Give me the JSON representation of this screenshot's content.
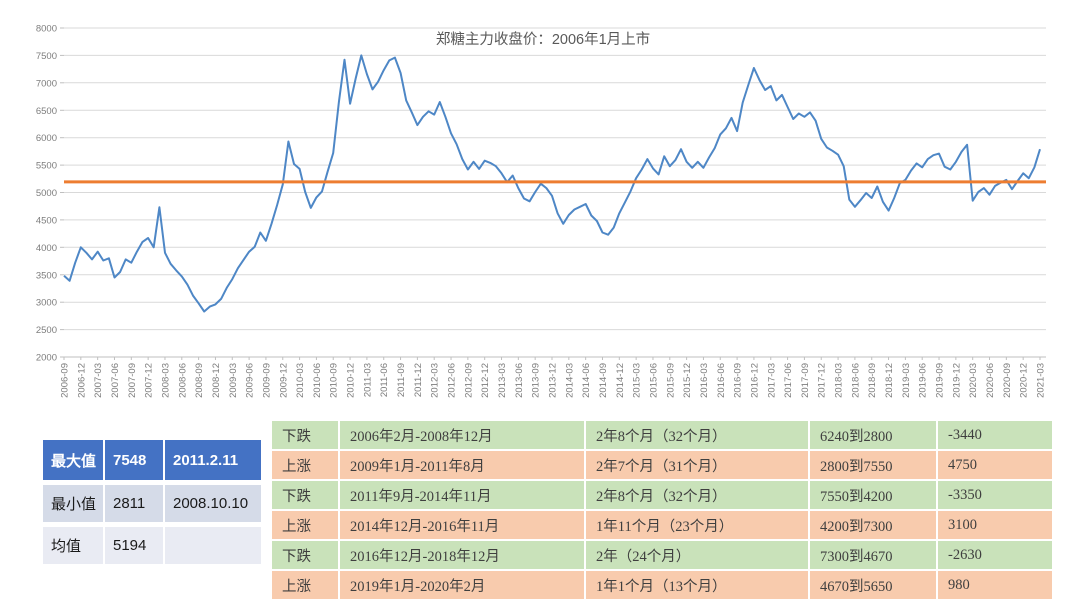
{
  "chart_data": {
    "type": "line",
    "title": "郑糖主力收盘价：2006年1月上市",
    "ylim": [
      2000,
      8000
    ],
    "ytick_step": 500,
    "grid": true,
    "legend": "none",
    "y_tick_labels": [
      "2000",
      "2500",
      "3000",
      "3500",
      "4000",
      "4500",
      "5000",
      "5500",
      "6000",
      "6500",
      "7000",
      "7500",
      "8000"
    ],
    "x_tick_labels": [
      "2006-09",
      "2006-12",
      "2007-03",
      "2007-06",
      "2007-09",
      "2007-12",
      "2008-03",
      "2008-06",
      "2008-09",
      "2008-12",
      "2009-03",
      "2009-06",
      "2009-09",
      "2009-12",
      "2010-03",
      "2010-06",
      "2010-09",
      "2010-12",
      "2011-03",
      "2011-06",
      "2011-09",
      "2011-12",
      "2012-03",
      "2012-06",
      "2012-09",
      "2012-12",
      "2013-03",
      "2013-06",
      "2013-09",
      "2013-12",
      "2014-03",
      "2014-06",
      "2014-09",
      "2014-12",
      "2015-03",
      "2015-06",
      "2015-09",
      "2015-12",
      "2016-03",
      "2016-06",
      "2016-09",
      "2016-12",
      "2017-03",
      "2017-06",
      "2017-09",
      "2017-12",
      "2018-03",
      "2018-06",
      "2018-09",
      "2018-12",
      "2019-03",
      "2019-06",
      "2019-09",
      "2019-12",
      "2020-03",
      "2020-06",
      "2020-09",
      "2020-12",
      "2021-03"
    ],
    "mean_line": {
      "label": "均值",
      "value": 5194
    },
    "series": [
      {
        "name": "郑糖主力收盘价",
        "start_month": "2006-09",
        "frequency": "monthly",
        "values": [
          3480,
          3390,
          3720,
          4000,
          3900,
          3780,
          3920,
          3760,
          3800,
          3450,
          3550,
          3780,
          3720,
          3920,
          4100,
          4170,
          4000,
          4730,
          3900,
          3700,
          3580,
          3470,
          3320,
          3120,
          2980,
          2830,
          2920,
          2960,
          3060,
          3260,
          3420,
          3620,
          3770,
          3920,
          4010,
          4270,
          4120,
          4430,
          4770,
          5150,
          5930,
          5520,
          5430,
          5010,
          4720,
          4910,
          5020,
          5380,
          5720,
          6650,
          7420,
          6620,
          7080,
          7500,
          7160,
          6880,
          7020,
          7230,
          7410,
          7460,
          7180,
          6680,
          6460,
          6230,
          6380,
          6480,
          6420,
          6650,
          6380,
          6080,
          5880,
          5610,
          5420,
          5560,
          5430,
          5580,
          5540,
          5480,
          5350,
          5190,
          5310,
          5080,
          4890,
          4840,
          5010,
          5160,
          5080,
          4940,
          4620,
          4430,
          4590,
          4690,
          4740,
          4790,
          4580,
          4480,
          4270,
          4230,
          4360,
          4620,
          4820,
          5020,
          5260,
          5420,
          5610,
          5440,
          5330,
          5660,
          5480,
          5590,
          5790,
          5560,
          5450,
          5560,
          5450,
          5640,
          5810,
          6060,
          6170,
          6360,
          6120,
          6640,
          6960,
          7270,
          7050,
          6870,
          6940,
          6680,
          6780,
          6560,
          6340,
          6440,
          6380,
          6460,
          6310,
          5980,
          5820,
          5760,
          5690,
          5480,
          4870,
          4740,
          4860,
          4990,
          4900,
          5110,
          4830,
          4670,
          4900,
          5170,
          5230,
          5400,
          5530,
          5460,
          5610,
          5680,
          5710,
          5470,
          5420,
          5560,
          5740,
          5870,
          4850,
          5010,
          5080,
          4960,
          5120,
          5180,
          5230,
          5060,
          5210,
          5350,
          5260,
          5460,
          5790
        ]
      }
    ]
  },
  "stats_table": {
    "rows": [
      {
        "label": "最大值",
        "value": "7548",
        "date": "2011.2.11"
      },
      {
        "label": "最小值",
        "value": "2811",
        "date": "2008.10.10"
      },
      {
        "label": "均值",
        "value": "5194",
        "date": ""
      }
    ]
  },
  "phase_table": {
    "rows": [
      {
        "direction": "下跌",
        "period": "2006年2月-2008年12月",
        "duration": "2年8个月（32个月）",
        "range": "6240到2800",
        "change": "-3440"
      },
      {
        "direction": "上涨",
        "period": "2009年1月-2011年8月",
        "duration": "2年7个月（31个月）",
        "range": "2800到7550",
        "change": "4750"
      },
      {
        "direction": "下跌",
        "period": "2011年9月-2014年11月",
        "duration": "2年8个月（32个月）",
        "range": "7550到4200",
        "change": "-3350"
      },
      {
        "direction": "上涨",
        "period": "2014年12月-2016年11月",
        "duration": "1年11个月（23个月）",
        "range": "4200到7300",
        "change": "3100"
      },
      {
        "direction": "下跌",
        "period": "2016年12月-2018年12月",
        "duration": "2年（24个月）",
        "range": "7300到4670",
        "change": "-2630"
      },
      {
        "direction": "上涨",
        "period": "2019年1月-2020年2月",
        "duration": "1年1个月（13个月）",
        "range": "4670到5650",
        "change": "980"
      }
    ]
  },
  "colors": {
    "line": "#4e87c6",
    "mean_line": "#ed7d31",
    "grid": "#d9d9d9",
    "axis": "#bfbfbf",
    "tick_label": "#7d7d7d",
    "title_text": "#595959",
    "stats_header_bg": "#4472c4",
    "stats_header_text": "#ffffff",
    "stats_row2_bg": "#d5dbe8",
    "stats_row3_bg": "#e9ebf3",
    "down_row_bg": "#c9e2ba",
    "up_row_bg": "#f8cbad"
  }
}
